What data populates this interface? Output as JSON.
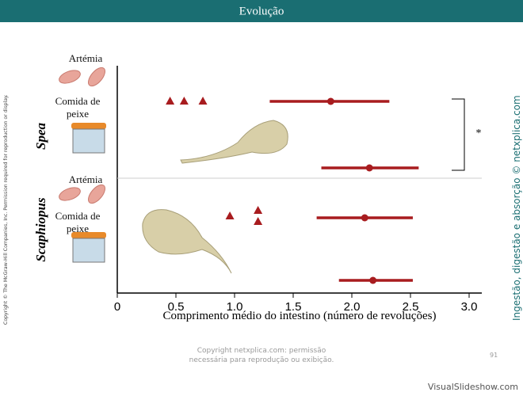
{
  "header": {
    "title": "Evolução"
  },
  "chart_data": {
    "type": "dot",
    "species": [
      "Spea",
      "Scaphiopus"
    ],
    "diets": [
      "Artémia",
      "Comida de peixe",
      "Artémia",
      "Comida de peixe"
    ],
    "values": [
      1.82,
      2.15,
      2.11,
      2.18
    ],
    "lower": [
      1.3,
      1.74,
      1.7,
      1.89
    ],
    "upper": [
      2.32,
      2.57,
      2.52,
      2.52
    ],
    "individuals": [
      [
        0.45,
        0.57,
        0.73
      ],
      [
        0.96,
        1.2,
        1.2
      ]
    ],
    "color": "#a81c1f",
    "xlim": [
      0,
      3
    ],
    "xticks": [
      0,
      0.5,
      {
        "value": 1,
        "label": "1.0"
      },
      1.5,
      {
        "value": 2,
        "label": "2.0"
      },
      2.5,
      {
        "value": 3,
        "label": "3.0"
      }
    ],
    "xlabel": "Comprimento médio do intestino (número de revoluções)",
    "annotation": "*"
  },
  "side": {
    "left": "Copyright © The McGraw-Hill Companies, Inc. Permission required for reproduction or display.",
    "right": "Ingestão, digestão e absorção © netxplica.com"
  },
  "footer": {
    "note": "Copyright netxplica.com: permissão necessária para reprodução ou exibição.",
    "page": "91",
    "brand": "VisualSlideshow.com"
  }
}
